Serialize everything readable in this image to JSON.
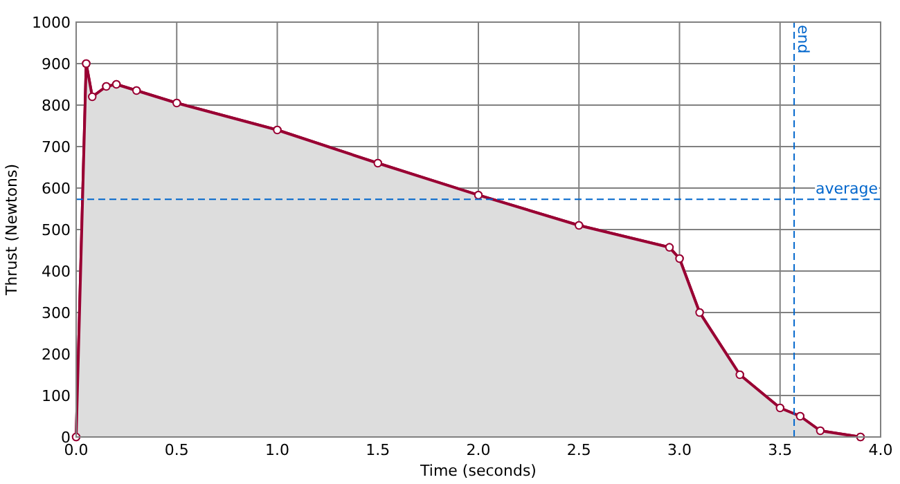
{
  "chart_data": {
    "type": "area",
    "xlabel": "Time (seconds)",
    "ylabel": "Thrust (Newtons)",
    "x": [
      0,
      0.05,
      0.08,
      0.15,
      0.2,
      0.3,
      0.5,
      1.0,
      1.5,
      2.0,
      2.5,
      2.95,
      3.0,
      3.1,
      3.3,
      3.5,
      3.6,
      3.7,
      3.9
    ],
    "series": [
      {
        "color": "#990033",
        "values": [
          0,
          900,
          820,
          845,
          850,
          835,
          805,
          740,
          660,
          583,
          510,
          457,
          430,
          300,
          150,
          70,
          50,
          15,
          0
        ]
      }
    ],
    "xlim": [
      0,
      4
    ],
    "xticks": [
      {
        "value": 0,
        "label": "0.0"
      },
      {
        "value": 0.5,
        "label": "0.5"
      },
      {
        "value": 1,
        "label": "1.0"
      },
      {
        "value": 1.5,
        "label": "1.5"
      },
      {
        "value": 2,
        "label": "2.0"
      },
      {
        "value": 2.5,
        "label": "2.5"
      },
      {
        "value": 3,
        "label": "3.0"
      },
      {
        "value": 3.5,
        "label": "3.5"
      },
      {
        "value": 4,
        "label": "4.0"
      }
    ],
    "ylim": [
      0,
      1000
    ],
    "yticks": [
      0,
      100,
      200,
      300,
      400,
      500,
      600,
      700,
      800,
      900,
      1000
    ],
    "grid": true,
    "marker": "circle",
    "line_style": "solid",
    "ref_lines": [
      {
        "axis": "y",
        "value": 573,
        "label": "average",
        "color": "#0066cc",
        "line_style": "dashed"
      },
      {
        "axis": "x",
        "value": 3.57,
        "label": "end",
        "color": "#0066cc",
        "line_style": "dashed"
      }
    ]
  }
}
